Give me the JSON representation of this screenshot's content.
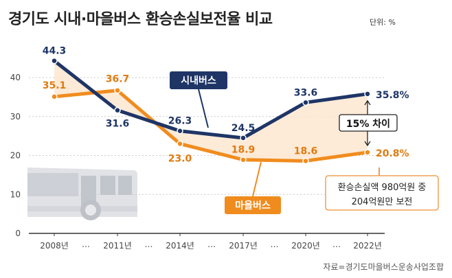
{
  "title": "경기도 시내·마을버스 환승손실보전율 비교",
  "unit": "단위: %",
  "source": "자료=경기도마을버스운송사업조합",
  "chart_data": {
    "type": "line",
    "categories": [
      "2008년",
      "2011년",
      "2014년",
      "2017년",
      "2020년",
      "2022년"
    ],
    "gap_marker": "…",
    "ylim": [
      0,
      44
    ],
    "yticks": [
      "0",
      "10",
      "20",
      "30",
      "40"
    ],
    "series": [
      {
        "name": "시내버스",
        "values": [
          44.3,
          31.6,
          26.3,
          24.5,
          33.6,
          35.8
        ],
        "labels": [
          "44.3",
          "31.6",
          "26.3",
          "24.5",
          "33.6",
          "35.8%"
        ],
        "color": "#1e3566"
      },
      {
        "name": "마을버스",
        "values": [
          35.1,
          36.7,
          23.0,
          18.9,
          18.6,
          20.8
        ],
        "labels": [
          "35.1",
          "36.7",
          "23.0",
          "18.9",
          "18.6",
          "20.8%"
        ],
        "color": "#f08c1e"
      }
    ],
    "gap_label": "15% 차이",
    "note_line1": "환승손실액 980억원 중",
    "note_line2": "204억원만 보전",
    "fill_color": "#fde6d0"
  }
}
